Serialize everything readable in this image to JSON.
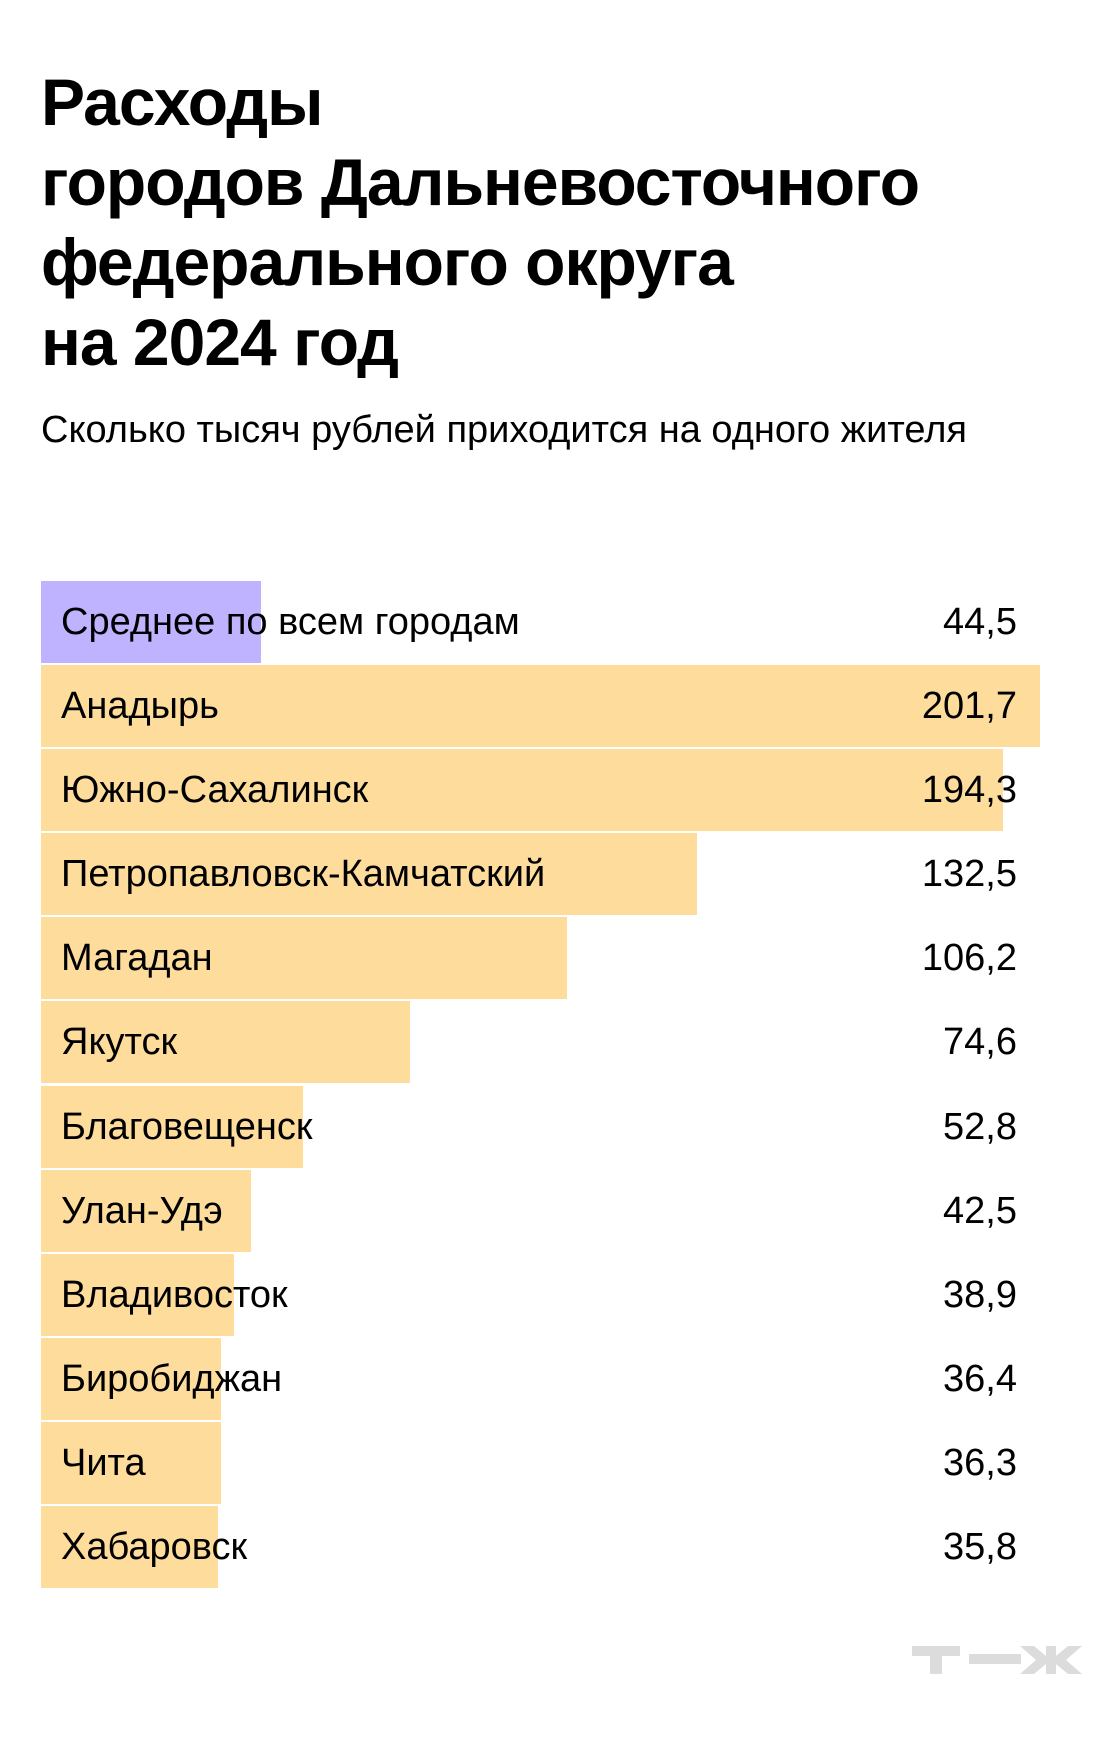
{
  "header": {
    "title_lines": [
      "Расходы",
      "городов Дальневосточного",
      "федерального округа",
      "на 2024 год"
    ],
    "subtitle": "Сколько тысяч рублей приходится на одного жителя"
  },
  "colors": {
    "average_bar": "#BFB3FF",
    "city_bar": "#FDDC9C",
    "logo": "#DCDCDC",
    "text": "#000000"
  },
  "logo": {
    "text": "т—ж",
    "icon": "tzh-logo-icon"
  },
  "chart_data": {
    "type": "bar",
    "orientation": "horizontal",
    "title": "Расходы городов Дальневосточного федерального округа на 2024 год",
    "subtitle": "Сколько тысяч рублей приходится на одного жителя",
    "xlabel": "",
    "ylabel": "",
    "unit": "тыс. руб. на жителя",
    "xlim": [
      0,
      201.7
    ],
    "grid": false,
    "legend": null,
    "categories": [
      "Среднее по всем городам",
      "Анадырь",
      "Южно-Сахалинск",
      "Петропавловск-Камчатский",
      "Магадан",
      "Якутск",
      "Благовещенск",
      "Улан-Удэ",
      "Владивосток",
      "Биробиджан",
      "Чита",
      "Хабаровск"
    ],
    "values": [
      44.5,
      201.7,
      194.3,
      132.5,
      106.2,
      74.6,
      52.8,
      42.5,
      38.9,
      36.4,
      36.3,
      35.8
    ],
    "value_labels": [
      "44,5",
      "201,7",
      "194,3",
      "132,5",
      "106,2",
      "74,6",
      "52,8",
      "42,5",
      "38,9",
      "36,4",
      "36,3",
      "35,8"
    ],
    "highlight": {
      "index": 0,
      "color": "#BFB3FF"
    },
    "bar_color": "#FDDC9C"
  }
}
